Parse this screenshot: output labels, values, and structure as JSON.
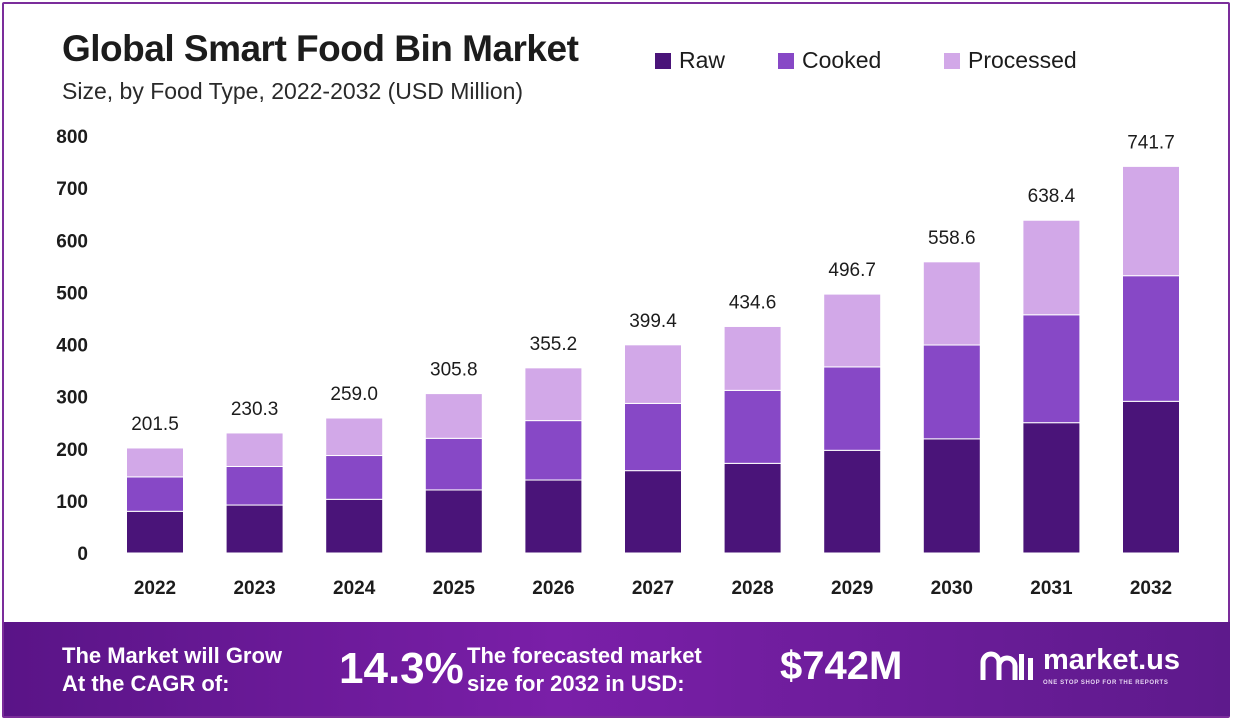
{
  "header": {
    "title": "Global Smart Food Bin Market",
    "subtitle": "Size, by Food Type, 2022-2032 (USD Million)"
  },
  "colors": {
    "raw": "#4a1479",
    "cooked": "#8748c6",
    "processed": "#d2a8e8"
  },
  "chart_data": {
    "type": "bar",
    "stacked": true,
    "title": "Global Smart Food Bin Market",
    "subtitle": "Size, by Food Type, 2022-2032 (USD Million)",
    "categories": [
      "2022",
      "2023",
      "2024",
      "2025",
      "2026",
      "2027",
      "2028",
      "2029",
      "2030",
      "2031",
      "2032"
    ],
    "series": [
      {
        "name": "Raw",
        "values": [
          80,
          92,
          103,
          121,
          140,
          158,
          172,
          197,
          219,
          250,
          291
        ]
      },
      {
        "name": "Cooked",
        "values": [
          66,
          74,
          84,
          99,
          114,
          129,
          140,
          160,
          180,
          207,
          241
        ]
      },
      {
        "name": "Processed",
        "values": [
          55.5,
          64.3,
          72.0,
          85.8,
          101.2,
          112.4,
          122.6,
          139.7,
          159.6,
          181.4,
          209.7
        ]
      }
    ],
    "totals": [
      "201.5",
      "230.3",
      "259.0",
      "305.8",
      "355.2",
      "399.4",
      "434.6",
      "496.7",
      "558.6",
      "638.4",
      "741.7"
    ],
    "yticks": [
      0,
      100,
      200,
      300,
      400,
      500,
      600,
      700,
      800
    ],
    "ylim": [
      0,
      800
    ],
    "grid": false,
    "legend_position": "top-right",
    "xlabel": "",
    "ylabel": ""
  },
  "footer": {
    "cagr_label_line1": "The Market will Grow",
    "cagr_label_line2": "At the CAGR of:",
    "cagr_value": "14.3%",
    "forecast_label_line1": "The forecasted market",
    "forecast_label_line2": "size for 2032 in USD:",
    "forecast_value": "$742M",
    "brand_name": "market.us",
    "brand_tagline": "ONE STOP SHOP FOR THE REPORTS"
  }
}
